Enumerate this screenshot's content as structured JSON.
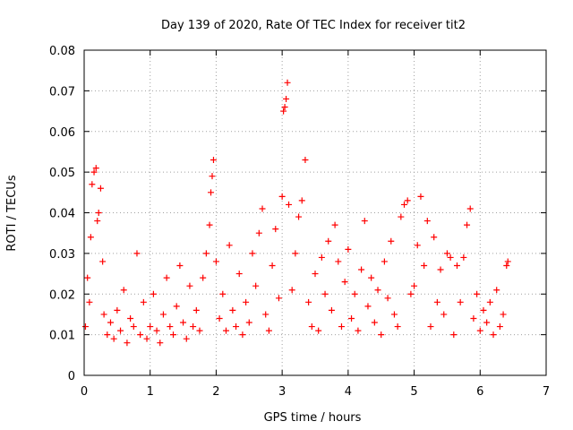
{
  "chart_data": {
    "type": "scatter",
    "title": "Day 139 of 2020, Rate Of TEC Index for receiver tit2",
    "xlabel": "GPS time / hours",
    "ylabel": "ROTI / TECUs",
    "xlim": [
      0,
      7
    ],
    "ylim": [
      0,
      0.08
    ],
    "x_ticks": [
      0,
      1,
      2,
      3,
      4,
      5,
      6,
      7
    ],
    "x_tick_labels": [
      "0",
      "1",
      "2",
      "3",
      "4",
      "5",
      "6",
      "7"
    ],
    "y_ticks": [
      0,
      0.01,
      0.02,
      0.03,
      0.04,
      0.05,
      0.06,
      0.07,
      0.08
    ],
    "y_tick_labels": [
      "0",
      "0.01",
      "0.02",
      "0.03",
      "0.04",
      "0.05",
      "0.06",
      "0.07",
      "0.08"
    ],
    "grid": true,
    "marker": "+",
    "color": "#ff0000",
    "series": [
      {
        "name": "ROTI",
        "x": [
          0.02,
          0.05,
          0.08,
          0.1,
          0.12,
          0.15,
          0.18,
          0.2,
          0.22,
          0.25,
          0.28,
          0.3,
          0.35,
          0.4,
          0.45,
          0.5,
          0.55,
          0.6,
          0.65,
          0.7,
          0.75,
          0.8,
          0.85,
          0.9,
          0.95,
          1.0,
          1.05,
          1.1,
          1.15,
          1.2,
          1.25,
          1.3,
          1.35,
          1.4,
          1.45,
          1.5,
          1.55,
          1.6,
          1.65,
          1.7,
          1.75,
          1.8,
          1.85,
          1.9,
          1.92,
          1.94,
          1.96,
          2.0,
          2.05,
          2.1,
          2.15,
          2.2,
          2.25,
          2.3,
          2.35,
          2.4,
          2.45,
          2.5,
          2.55,
          2.6,
          2.65,
          2.7,
          2.75,
          2.8,
          2.85,
          2.9,
          2.95,
          3.0,
          3.02,
          3.04,
          3.06,
          3.08,
          3.1,
          3.15,
          3.2,
          3.25,
          3.3,
          3.35,
          3.4,
          3.45,
          3.5,
          3.55,
          3.6,
          3.65,
          3.7,
          3.75,
          3.8,
          3.85,
          3.9,
          3.95,
          4.0,
          4.05,
          4.1,
          4.15,
          4.2,
          4.25,
          4.3,
          4.35,
          4.4,
          4.45,
          4.5,
          4.55,
          4.6,
          4.65,
          4.7,
          4.75,
          4.8,
          4.85,
          4.9,
          4.95,
          5.0,
          5.05,
          5.1,
          5.15,
          5.2,
          5.25,
          5.3,
          5.35,
          5.4,
          5.45,
          5.5,
          5.55,
          5.6,
          5.65,
          5.7,
          5.75,
          5.8,
          5.85,
          5.9,
          5.95,
          6.0,
          6.05,
          6.1,
          6.15,
          6.2,
          6.25,
          6.3,
          6.35,
          6.4,
          6.42
        ],
        "y": [
          0.012,
          0.024,
          0.018,
          0.034,
          0.047,
          0.05,
          0.051,
          0.038,
          0.04,
          0.046,
          0.028,
          0.015,
          0.01,
          0.013,
          0.009,
          0.016,
          0.011,
          0.021,
          0.008,
          0.014,
          0.012,
          0.03,
          0.01,
          0.018,
          0.009,
          0.012,
          0.02,
          0.011,
          0.008,
          0.015,
          0.024,
          0.012,
          0.01,
          0.017,
          0.027,
          0.013,
          0.009,
          0.022,
          0.012,
          0.016,
          0.011,
          0.024,
          0.03,
          0.037,
          0.045,
          0.049,
          0.053,
          0.028,
          0.014,
          0.02,
          0.011,
          0.032,
          0.016,
          0.012,
          0.025,
          0.01,
          0.018,
          0.013,
          0.03,
          0.022,
          0.035,
          0.041,
          0.015,
          0.011,
          0.027,
          0.036,
          0.019,
          0.044,
          0.065,
          0.066,
          0.068,
          0.072,
          0.042,
          0.021,
          0.03,
          0.039,
          0.043,
          0.053,
          0.018,
          0.012,
          0.025,
          0.011,
          0.029,
          0.02,
          0.033,
          0.016,
          0.037,
          0.028,
          0.012,
          0.023,
          0.031,
          0.014,
          0.02,
          0.011,
          0.026,
          0.038,
          0.017,
          0.024,
          0.013,
          0.021,
          0.01,
          0.028,
          0.019,
          0.033,
          0.015,
          0.012,
          0.039,
          0.042,
          0.043,
          0.02,
          0.022,
          0.032,
          0.044,
          0.027,
          0.038,
          0.012,
          0.034,
          0.018,
          0.026,
          0.015,
          0.03,
          0.029,
          0.01,
          0.027,
          0.018,
          0.029,
          0.037,
          0.041,
          0.014,
          0.02,
          0.011,
          0.016,
          0.013,
          0.018,
          0.01,
          0.021,
          0.012,
          0.015,
          0.027,
          0.028
        ]
      }
    ]
  }
}
